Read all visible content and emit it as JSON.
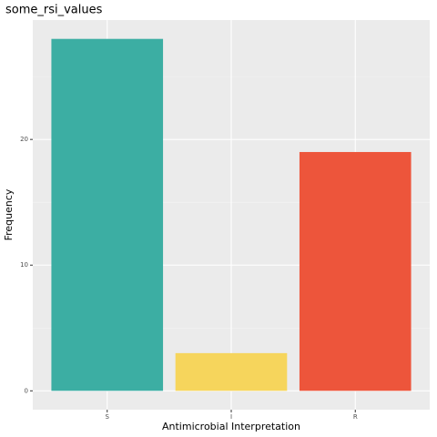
{
  "chart_data": {
    "type": "bar",
    "title": "some_rsi_values",
    "x_label": "Antimicrobial Interpretation",
    "y_label": "Frequency",
    "categories": [
      "S",
      "I",
      "R"
    ],
    "values": [
      28,
      3,
      19
    ],
    "colors": [
      "#3CAEA3",
      "#F6D55C",
      "#ED553B"
    ],
    "ylim": [
      -1.5,
      29.5
    ],
    "yticks": [
      0,
      10,
      20
    ],
    "minor_yticks": [
      5,
      15,
      25
    ],
    "grid": true
  }
}
